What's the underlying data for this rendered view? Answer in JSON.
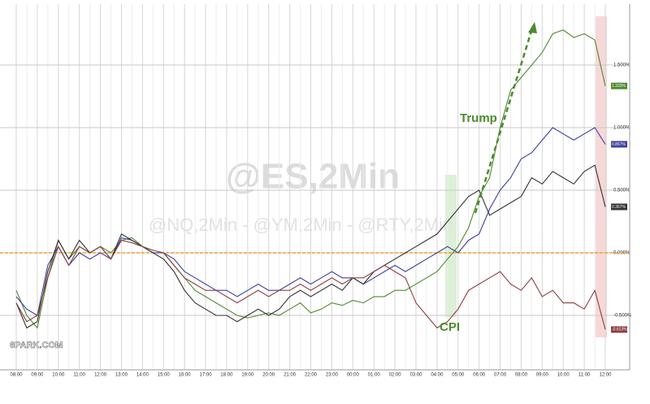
{
  "chart_data": {
    "type": "line",
    "annotations": {
      "trump": "Trump",
      "cpi": "CPI"
    },
    "watermarks": {
      "main": "@ES,2Min",
      "sub": "@NQ,2Min - @YM,2Min - @RTY,2Min",
      "site": "6PARK.COM"
    },
    "categories": [
      "08:00",
      null,
      "09:00",
      null,
      "10:00",
      null,
      "11:00",
      null,
      "12:00",
      null,
      "13:00",
      null,
      "14:00",
      null,
      "15:00",
      null,
      "16:00",
      null,
      "17:00",
      null,
      "18:00",
      null,
      "19:00",
      null,
      "20:00",
      null,
      "21:00",
      null,
      "22:00",
      null,
      "23:00",
      null,
      "00:00",
      null,
      "01:00",
      null,
      "02:00",
      null,
      "03:00",
      null,
      "04:00",
      null,
      "05:00",
      null,
      "06:00",
      null,
      "07:00",
      null,
      "08:00",
      null,
      "09:00",
      null,
      "10:00",
      null,
      "11:00",
      null,
      "12:00"
    ],
    "series": [
      {
        "name": "ES",
        "color": "#4e8a2e",
        "values": [
          -0.3,
          -0.5,
          -0.6,
          -0.2,
          0.1,
          -0.05,
          0.05,
          0.0,
          0.05,
          0.0,
          0.1,
          0.12,
          0.05,
          0.0,
          0.0,
          -0.1,
          -0.2,
          -0.3,
          -0.35,
          -0.4,
          -0.45,
          -0.5,
          -0.52,
          -0.5,
          -0.48,
          -0.5,
          -0.45,
          -0.4,
          -0.48,
          -0.45,
          -0.4,
          -0.42,
          -0.38,
          -0.4,
          -0.35,
          -0.35,
          -0.3,
          -0.3,
          -0.25,
          -0.2,
          -0.15,
          -0.05,
          0.05,
          0.2,
          0.45,
          0.6,
          1.0,
          1.3,
          1.4,
          1.5,
          1.6,
          1.75,
          1.78,
          1.72,
          1.75,
          1.7,
          1.333
        ],
        "value_labels": {
          "56": "1.333%"
        }
      },
      {
        "name": "NQ",
        "color": "#3b3fa0",
        "values": [
          -0.35,
          -0.45,
          -0.5,
          -0.1,
          0.05,
          -0.1,
          0.0,
          -0.05,
          0.0,
          -0.05,
          0.12,
          0.1,
          0.05,
          0.0,
          0.0,
          -0.05,
          -0.15,
          -0.2,
          -0.25,
          -0.3,
          -0.3,
          -0.35,
          -0.3,
          -0.25,
          -0.3,
          -0.3,
          -0.25,
          -0.2,
          -0.25,
          -0.2,
          -0.15,
          -0.2,
          -0.2,
          -0.25,
          -0.2,
          -0.15,
          -0.1,
          -0.15,
          -0.1,
          -0.05,
          0.0,
          0.05,
          0.0,
          0.1,
          0.15,
          0.35,
          0.5,
          0.6,
          0.75,
          0.8,
          0.9,
          1.0,
          0.95,
          0.9,
          0.95,
          1.0,
          0.867
        ],
        "value_labels": {
          "56": "0.867%"
        }
      },
      {
        "name": "YM",
        "color": "#333333",
        "values": [
          -0.4,
          -0.6,
          -0.55,
          -0.15,
          0.1,
          -0.05,
          0.1,
          0.0,
          0.05,
          -0.05,
          0.15,
          0.1,
          0.05,
          0.0,
          -0.05,
          -0.15,
          -0.3,
          -0.4,
          -0.45,
          -0.5,
          -0.5,
          -0.55,
          -0.5,
          -0.45,
          -0.5,
          -0.45,
          -0.35,
          -0.3,
          -0.35,
          -0.3,
          -0.25,
          -0.3,
          -0.2,
          -0.25,
          -0.15,
          -0.1,
          -0.05,
          0.0,
          0.05,
          0.1,
          0.15,
          0.25,
          0.35,
          0.45,
          0.5,
          0.3,
          0.35,
          0.4,
          0.45,
          0.6,
          0.55,
          0.65,
          0.6,
          0.55,
          0.65,
          0.7,
          0.367
        ],
        "value_labels": {
          "56": "0.367%"
        }
      },
      {
        "name": "RTY",
        "color": "#8a4040",
        "values": [
          -0.4,
          -0.55,
          -0.5,
          -0.2,
          0.05,
          -0.1,
          0.05,
          0.0,
          0.05,
          -0.05,
          0.1,
          0.08,
          0.05,
          0.02,
          0.0,
          -0.1,
          -0.2,
          -0.25,
          -0.3,
          -0.3,
          -0.35,
          -0.4,
          -0.35,
          -0.3,
          -0.35,
          -0.3,
          -0.3,
          -0.25,
          -0.3,
          -0.25,
          -0.2,
          -0.25,
          -0.2,
          -0.2,
          -0.15,
          -0.1,
          -0.15,
          -0.2,
          -0.4,
          -0.5,
          -0.6,
          -0.55,
          -0.45,
          -0.3,
          -0.25,
          -0.2,
          -0.15,
          -0.25,
          -0.3,
          -0.2,
          -0.35,
          -0.3,
          -0.4,
          -0.4,
          -0.45,
          -0.3,
          -0.613
        ],
        "value_labels": {
          "56": "-0.613%"
        }
      }
    ],
    "ylim": [
      -0.9,
      2.0
    ],
    "yticks": [
      {
        "value": -0.5,
        "label": "-0.500%"
      },
      {
        "value": 0,
        "label": "0.000%"
      },
      {
        "value": 0.5,
        "label": "0.500%"
      },
      {
        "value": 1.0,
        "label": "1.000%"
      },
      {
        "value": 1.5,
        "label": "1.500%"
      }
    ],
    "zero_line": {
      "value": 0,
      "color": "#f0a030"
    },
    "grid": true
  }
}
